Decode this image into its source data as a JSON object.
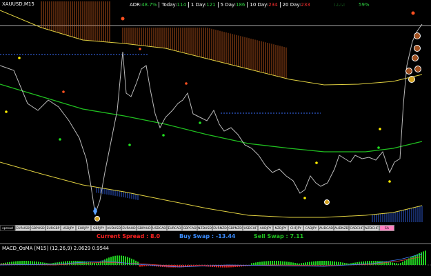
{
  "header": {
    "symbol": "XAUUSD,M15",
    "stats": [
      {
        "label": "ADR:",
        "value": "48.7%",
        "color": "#2ecc40"
      },
      {
        "label": "Today:",
        "value": "114",
        "color": "#2ecc40"
      },
      {
        "label": "1 Day:",
        "value": "121",
        "color": "#2ecc40"
      },
      {
        "label": "5 Day:",
        "value": "186",
        "color": "#2ecc40"
      },
      {
        "label": "10 Day:",
        "value": "234",
        "color": "#ff3030"
      },
      {
        "label": "20 Day:",
        "value": "233",
        "color": "#ff3030"
      }
    ],
    "signal": ":.:.:.:",
    "percent": "59%"
  },
  "tabs": [
    "spread",
    "EURUSD",
    "GBPUSD",
    "EURGBP",
    "USDJPY",
    "EURJPY",
    "GBPJPY",
    "AUDUSD",
    "EURAUD",
    "GBPAUD",
    "USDCAD",
    "EURCAD",
    "GBPCAD",
    "NZDUSD",
    "EURNZD",
    "GBPNZD",
    "USDCHF",
    "AUDJPY",
    "NZDJPY",
    "CHFJPY",
    "CADJPY",
    "AUDCAD",
    "AUDNZD",
    "CADCHF",
    "NZDCHF",
    "SA"
  ],
  "info": {
    "spread_label": "Current Spread :",
    "spread": "8.0",
    "buy_label": "Buy Swap :",
    "buy": "-13.44",
    "sell_label": "Sell Swap :",
    "sell": "7.11"
  },
  "indicator": {
    "name": "MACD_OsMA [M15] (12,26,9)",
    "values": [
      "2.0629",
      "0.9544"
    ]
  }
}
